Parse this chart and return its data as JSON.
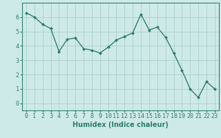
{
  "x": [
    0,
    1,
    2,
    3,
    4,
    5,
    6,
    7,
    8,
    9,
    10,
    11,
    12,
    13,
    14,
    15,
    16,
    17,
    18,
    19,
    20,
    21,
    22,
    23
  ],
  "y": [
    6.3,
    6.0,
    5.5,
    5.2,
    3.6,
    4.45,
    4.55,
    3.8,
    3.7,
    3.5,
    3.9,
    4.4,
    4.65,
    4.9,
    6.2,
    5.1,
    5.3,
    4.6,
    3.5,
    2.3,
    1.0,
    0.4,
    1.5,
    1.0
  ],
  "line_color": "#2e7d6e",
  "marker": "D",
  "marker_size": 2.5,
  "bg_color": "#ceeae8",
  "grid_color": "#aacfcc",
  "xlabel": "Humidex (Indice chaleur)",
  "xlim": [
    -0.5,
    23.5
  ],
  "ylim": [
    -0.5,
    7.0
  ],
  "xticks": [
    0,
    1,
    2,
    3,
    4,
    5,
    6,
    7,
    8,
    9,
    10,
    11,
    12,
    13,
    14,
    15,
    16,
    17,
    18,
    19,
    20,
    21,
    22,
    23
  ],
  "yticks": [
    0,
    1,
    2,
    3,
    4,
    5,
    6
  ],
  "xlabel_fontsize": 7,
  "tick_fontsize": 6,
  "line_width": 1.0
}
